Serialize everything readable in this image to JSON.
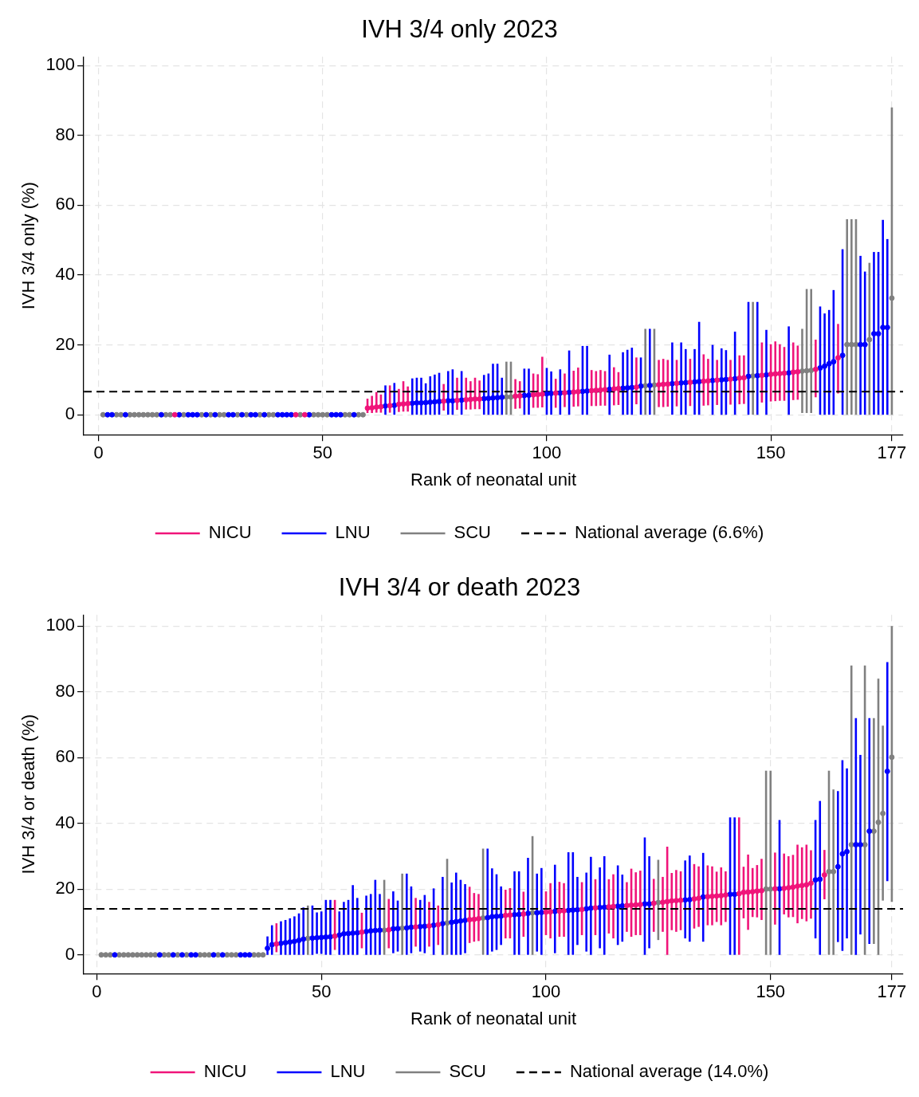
{
  "chart_data": [
    {
      "type": "scatter",
      "title": "IVH 3/4 only 2023",
      "xlabel": "Rank of neonatal unit",
      "ylabel": "IVH 3/4 only (%)",
      "xlim": [
        -3.3,
        179.5
      ],
      "xticks": [
        0,
        50,
        100,
        150,
        177
      ],
      "ylim": [
        -5.7,
        102.5
      ],
      "yticks": [
        0,
        20,
        40,
        60,
        80,
        100
      ],
      "grid": true,
      "legend": "bottom",
      "marker": "circle",
      "series": [
        {
          "name": "NICU",
          "color": "#f0147a",
          "x": [
            17,
            44,
            46,
            60,
            61,
            62,
            63,
            65,
            67,
            68,
            69,
            77,
            80,
            82,
            83,
            84,
            85,
            93,
            94,
            97,
            98,
            99,
            102,
            104,
            106,
            107,
            110,
            111,
            112,
            113,
            115,
            116,
            120,
            125,
            126,
            127,
            129,
            132,
            135,
            136,
            138,
            141,
            143,
            144,
            148,
            150,
            151,
            152,
            153,
            155,
            156,
            160,
            165
          ],
          "values": [
            0,
            0,
            0,
            1.9,
            2.0,
            2.2,
            2.3,
            2.6,
            3.0,
            3.1,
            3.2,
            3.9,
            4.1,
            4.3,
            4.4,
            4.5,
            4.5,
            5.3,
            5.4,
            5.7,
            5.8,
            5.9,
            6.2,
            6.3,
            6.5,
            6.6,
            6.9,
            7.0,
            7.1,
            7.2,
            7.4,
            7.5,
            7.9,
            8.6,
            8.7,
            8.8,
            9.0,
            9.3,
            9.6,
            9.7,
            9.9,
            10.2,
            10.5,
            10.6,
            11.3,
            11.6,
            11.7,
            11.8,
            11.9,
            12.2,
            12.3,
            13.0,
            16.3
          ],
          "errors": [
            null,
            null,
            null,
            [
              0.5,
              4.6
            ],
            [
              0.5,
              5.4
            ],
            [
              0.6,
              6.5
            ],
            [
              0.6,
              5.8
            ],
            [
              0.6,
              8.4
            ],
            [
              0.8,
              7.4
            ],
            [
              0.9,
              9.6
            ],
            [
              0.9,
              8.1
            ],
            [
              1.2,
              8.8
            ],
            [
              1.4,
              10.6
            ],
            [
              1.5,
              10.6
            ],
            [
              1.5,
              9.6
            ],
            [
              1.6,
              10.6
            ],
            [
              1.6,
              9.8
            ],
            [
              1.7,
              10.2
            ],
            [
              1.8,
              9.6
            ],
            [
              2,
              11.8
            ],
            [
              2,
              11.6
            ],
            [
              2.1,
              16.6
            ],
            [
              2,
              10.3
            ],
            [
              2.2,
              11.8
            ],
            [
              2.3,
              12.6
            ],
            [
              2.4,
              13.5
            ],
            [
              2.5,
              12.8
            ],
            [
              2.5,
              12.5
            ],
            [
              2.6,
              12.8
            ],
            [
              2.6,
              12.5
            ],
            [
              2.7,
              13.6
            ],
            [
              2.8,
              12.2
            ],
            [
              3,
              16.4
            ],
            [
              2.2,
              15.7
            ],
            [
              2.2,
              16
            ],
            [
              2.3,
              15.7
            ],
            [
              2.4,
              15.7
            ],
            [
              2.5,
              16
            ],
            [
              2.6,
              17.3
            ],
            [
              2.7,
              16
            ],
            [
              2.8,
              15.7
            ],
            [
              2.9,
              15.7
            ],
            [
              3,
              17
            ],
            [
              3.1,
              17
            ],
            [
              3.5,
              20.7
            ],
            [
              3.8,
              20.2
            ],
            [
              3.9,
              21
            ],
            [
              4,
              20.2
            ],
            [
              4,
              19.4
            ],
            [
              4.2,
              20.7
            ],
            [
              4.3,
              19.8
            ],
            [
              5,
              21.5
            ],
            [
              6.1,
              26
            ]
          ]
        },
        {
          "name": "LNU",
          "color": "#0000ff",
          "x": [
            2,
            3,
            6,
            14,
            18,
            20,
            21,
            22,
            24,
            26,
            29,
            30,
            32,
            34,
            35,
            37,
            40,
            41,
            42,
            43,
            47,
            52,
            53,
            54,
            57,
            64,
            66,
            70,
            71,
            72,
            73,
            74,
            75,
            76,
            78,
            79,
            81,
            86,
            87,
            88,
            89,
            90,
            95,
            96,
            100,
            101,
            103,
            105,
            108,
            109,
            114,
            117,
            118,
            119,
            121,
            123,
            128,
            130,
            131,
            133,
            134,
            137,
            139,
            140,
            142,
            145,
            147,
            149,
            154,
            161,
            162,
            163,
            164,
            166,
            170,
            171,
            173,
            174,
            175,
            176
          ],
          "values": [
            0,
            0,
            0,
            0,
            0,
            0,
            0,
            0,
            0,
            0,
            0,
            0,
            0,
            0,
            0,
            0,
            0,
            0,
            0,
            0,
            0,
            0,
            0,
            0,
            0,
            2.5,
            2.7,
            3.3,
            3.4,
            3.4,
            3.5,
            3.6,
            3.7,
            3.8,
            4.0,
            4.0,
            4.2,
            4.6,
            4.7,
            4.8,
            4.9,
            5.0,
            5.5,
            5.6,
            6.0,
            6.1,
            6.2,
            6.4,
            6.7,
            6.8,
            7.3,
            7.6,
            7.7,
            7.8,
            8.2,
            8.4,
            8.9,
            9.1,
            9.2,
            9.4,
            9.5,
            9.8,
            10.0,
            10.1,
            10.3,
            11.0,
            11.2,
            11.4,
            12.0,
            13.4,
            13.9,
            14.6,
            15.2,
            17,
            20.1,
            20.1,
            23.2,
            23.2,
            25,
            25
          ],
          "errors": [
            null,
            null,
            null,
            null,
            null,
            null,
            null,
            null,
            null,
            null,
            null,
            null,
            null,
            null,
            null,
            null,
            null,
            null,
            null,
            null,
            null,
            null,
            null,
            null,
            null,
            [
              0,
              8.4
            ],
            [
              0,
              9.1
            ],
            [
              0,
              10.4
            ],
            [
              0,
              10.6
            ],
            [
              0,
              10.6
            ],
            [
              0,
              9
            ],
            [
              0,
              11
            ],
            [
              0,
              11.5
            ],
            [
              0,
              12
            ],
            [
              0,
              12.5
            ],
            [
              0,
              13
            ],
            [
              0,
              12.5
            ],
            [
              0,
              11.4
            ],
            [
              0,
              11.8
            ],
            [
              0,
              14.6
            ],
            [
              0,
              14.6
            ],
            [
              0,
              10.6
            ],
            [
              0,
              13.2
            ],
            [
              0,
              13.2
            ],
            [
              0,
              13.4
            ],
            [
              0,
              12.4
            ],
            [
              0,
              13
            ],
            [
              0,
              18.4
            ],
            [
              0,
              19.7
            ],
            [
              0,
              19.7
            ],
            [
              0,
              17.2
            ],
            [
              0,
              17.9
            ],
            [
              0,
              18.6
            ],
            [
              0,
              19.2
            ],
            [
              0,
              16.4
            ],
            [
              0,
              24.6
            ],
            [
              0,
              20.7
            ],
            [
              0,
              20.7
            ],
            [
              0,
              18.8
            ],
            [
              0,
              18.8
            ],
            [
              0,
              26.6
            ],
            [
              0,
              20
            ],
            [
              0,
              19
            ],
            [
              0,
              18.5
            ],
            [
              0,
              23.8
            ],
            [
              0,
              32.3
            ],
            [
              0,
              32.3
            ],
            [
              0,
              24.3
            ],
            [
              0,
              25.3
            ],
            [
              0,
              31
            ],
            [
              0,
              29
            ],
            [
              0,
              30
            ],
            [
              0,
              35.7
            ],
            [
              0,
              47.4
            ],
            [
              0,
              45.5
            ],
            [
              0,
              41
            ],
            [
              0,
              46.6
            ],
            [
              0,
              46.6
            ],
            [
              0,
              55.8
            ],
            [
              0,
              50.3
            ]
          ]
        },
        {
          "name": "SCU",
          "color": "#808080",
          "x": [
            1,
            4,
            5,
            7,
            8,
            9,
            10,
            11,
            12,
            13,
            15,
            16,
            19,
            23,
            25,
            27,
            28,
            31,
            33,
            36,
            38,
            39,
            45,
            48,
            49,
            50,
            51,
            55,
            56,
            58,
            59,
            91,
            92,
            122,
            124,
            146,
            157,
            158,
            159,
            167,
            168,
            169,
            172,
            177
          ],
          "values": [
            0,
            0,
            0,
            0,
            0,
            0,
            0,
            0,
            0,
            0,
            0,
            0,
            0,
            0,
            0,
            0,
            0,
            0,
            0,
            0,
            0,
            0,
            0,
            0,
            0,
            0,
            0,
            0,
            0,
            0,
            0,
            5.1,
            5.1,
            8.3,
            8.5,
            11.1,
            12.5,
            12.6,
            12.7,
            20.1,
            20.1,
            20.1,
            21.5,
            33.4
          ],
          "errors": [
            null,
            null,
            null,
            null,
            null,
            null,
            null,
            null,
            null,
            null,
            null,
            null,
            null,
            null,
            null,
            null,
            null,
            null,
            null,
            null,
            null,
            null,
            null,
            null,
            null,
            null,
            null,
            null,
            null,
            null,
            null,
            [
              0,
              15.2
            ],
            [
              0,
              15.2
            ],
            [
              0,
              24.6
            ],
            [
              0,
              24.6
            ],
            [
              0,
              32.3
            ],
            [
              0.5,
              24.6
            ],
            [
              0.5,
              36
            ],
            [
              0.5,
              36
            ],
            [
              0,
              56
            ],
            [
              0,
              56
            ],
            [
              0,
              56
            ],
            [
              0,
              43.5
            ],
            [
              0,
              88
            ]
          ]
        }
      ],
      "ref_lines": [
        {
          "axis": "y",
          "value": 6.6,
          "label": "National average (6.6%)",
          "color": "#000000",
          "line_style": "dashed"
        }
      ]
    },
    {
      "type": "scatter",
      "title": "IVH 3/4 or death 2023",
      "xlabel": "Rank of neonatal unit",
      "ylabel": "IVH 3/4 or death (%)",
      "xlim": [
        -2.9,
        179.5
      ],
      "xticks": [
        0,
        50,
        100,
        150,
        177
      ],
      "ylim": [
        -5.7,
        103.4
      ],
      "yticks": [
        0,
        20,
        40,
        60,
        80,
        100
      ],
      "grid": true,
      "legend": "bottom",
      "marker": "circle",
      "series": [
        {
          "name": "NICU",
          "color": "#f0147a",
          "x": [
            40,
            53,
            59,
            65,
            71,
            74,
            76,
            83,
            84,
            85,
            91,
            92,
            95,
            100,
            101,
            103,
            104,
            108,
            111,
            114,
            115,
            118,
            119,
            120,
            121,
            124,
            126,
            127,
            128,
            129,
            130,
            133,
            134,
            136,
            137,
            138,
            139,
            140,
            143,
            144,
            145,
            146,
            147,
            148,
            151,
            153,
            154,
            155,
            156,
            157,
            158,
            159,
            162
          ],
          "values": [
            3.3,
            5.7,
            6.9,
            7.6,
            8.5,
            8.8,
            9.2,
            10.7,
            10.8,
            11.0,
            12.0,
            12.1,
            12.4,
            13.0,
            13.1,
            13.3,
            13.4,
            13.8,
            14.3,
            14.6,
            14.7,
            15.0,
            15.1,
            15.2,
            15.3,
            15.7,
            16.0,
            16.2,
            16.4,
            16.5,
            16.6,
            17.0,
            17.2,
            17.7,
            17.8,
            17.9,
            18.0,
            18.2,
            18.6,
            19.0,
            19.1,
            19.2,
            19.4,
            19.5,
            20.1,
            20.2,
            20.4,
            20.6,
            20.9,
            21.1,
            21.3,
            21.8,
            24.3
          ],
          "errors": [
            [
              0.8,
              9.6
            ],
            [
              1.5,
              16.7
            ],
            [
              2,
              12.8
            ],
            [
              2,
              17
            ],
            [
              2.5,
              17.3
            ],
            [
              2.5,
              16.1
            ],
            [
              3,
              15
            ],
            [
              3.6,
              20.7
            ],
            [
              4,
              18.8
            ],
            [
              4.2,
              18.5
            ],
            [
              5,
              19.8
            ],
            [
              5,
              20.3
            ],
            [
              5.5,
              19.2
            ],
            [
              6,
              19.3
            ],
            [
              5,
              21.8
            ],
            [
              5.5,
              22.2
            ],
            [
              5.5,
              21.8
            ],
            [
              6,
              22.1
            ],
            [
              6,
              23
            ],
            [
              6.5,
              23
            ],
            [
              5,
              24.5
            ],
            [
              7,
              22.1
            ],
            [
              5.5,
              26.2
            ],
            [
              6,
              25.1
            ],
            [
              6,
              25.6
            ],
            [
              7,
              23.1
            ],
            [
              7,
              23.7
            ],
            [
              0,
              32.9
            ],
            [
              7.5,
              24.9
            ],
            [
              7,
              25.8
            ],
            [
              7.5,
              25.4
            ],
            [
              8,
              27.6
            ],
            [
              8.5,
              26.9
            ],
            [
              9,
              27.2
            ],
            [
              9,
              26.9
            ],
            [
              10,
              25.3
            ],
            [
              9,
              26.6
            ],
            [
              10,
              25.4
            ],
            [
              0,
              41.8
            ],
            [
              11.1,
              26.8
            ],
            [
              7.6,
              30.5
            ],
            [
              11.5,
              26.4
            ],
            [
              11.4,
              27.3
            ],
            [
              10.6,
              29.2
            ],
            [
              9.2,
              31.1
            ],
            [
              12.3,
              30.8
            ],
            [
              11.4,
              30
            ],
            [
              11.5,
              30.4
            ],
            [
              9.6,
              33.5
            ],
            [
              10.9,
              32.7
            ],
            [
              10.2,
              33.5
            ],
            [
              11,
              31.8
            ],
            [
              16.9,
              31.9
            ]
          ]
        },
        {
          "name": "LNU",
          "color": "#0000ff",
          "x": [
            4,
            14,
            17,
            19,
            21,
            22,
            26,
            28,
            32,
            33,
            34,
            38,
            39,
            41,
            42,
            43,
            44,
            45,
            46,
            48,
            49,
            50,
            51,
            52,
            54,
            55,
            56,
            57,
            58,
            60,
            61,
            62,
            63,
            66,
            67,
            69,
            70,
            72,
            73,
            75,
            77,
            79,
            80,
            81,
            82,
            87,
            88,
            89,
            90,
            93,
            94,
            96,
            98,
            99,
            102,
            105,
            106,
            107,
            109,
            110,
            112,
            113,
            116,
            117,
            122,
            123,
            131,
            132,
            135,
            141,
            142,
            152,
            160,
            161,
            165,
            166,
            167,
            169,
            170,
            172,
            176
          ],
          "values": [
            0,
            0,
            0,
            0,
            0,
            0,
            0,
            0,
            0,
            0,
            0,
            2,
            3.1,
            3.5,
            3.7,
            3.9,
            4.1,
            4.4,
            4.8,
            5.1,
            5.2,
            5.3,
            5.4,
            5.5,
            6.0,
            6.4,
            6.5,
            6.6,
            6.7,
            7.1,
            7.3,
            7.4,
            7.5,
            7.9,
            8.0,
            8.2,
            8.4,
            8.6,
            8.7,
            9.0,
            9.5,
            9.9,
            10.1,
            10.3,
            10.5,
            11.3,
            11.6,
            11.7,
            11.8,
            12.2,
            12.3,
            12.6,
            12.8,
            12.9,
            13.2,
            13.5,
            13.6,
            13.7,
            14.0,
            14.2,
            14.4,
            14.5,
            14.8,
            14.9,
            15.5,
            15.5,
            16.7,
            16.8,
            17.6,
            18.4,
            18.4,
            20.1,
            22.8,
            23,
            26.8,
            30.7,
            31.4,
            33.5,
            33.5,
            37.6,
            55.8
          ],
          "errors": [
            null,
            null,
            null,
            null,
            null,
            null,
            null,
            null,
            null,
            null,
            null,
            [
              0,
              5.6
            ],
            [
              0,
              9
            ],
            [
              0,
              10.2
            ],
            [
              0,
              10.6
            ],
            [
              0,
              11.1
            ],
            [
              0,
              11.7
            ],
            [
              0,
              12.6
            ],
            [
              0,
              14.4
            ],
            [
              0,
              15
            ],
            [
              0.3,
              12.9
            ],
            [
              0.3,
              13.2
            ],
            [
              0,
              16.7
            ],
            [
              0,
              16.7
            ],
            [
              0,
              13.2
            ],
            [
              0,
              16.1
            ],
            [
              0,
              16.7
            ],
            [
              0,
              21.2
            ],
            [
              0,
              17.3
            ],
            [
              0,
              18
            ],
            [
              0,
              18.5
            ],
            [
              0,
              22.8
            ],
            [
              0,
              18.5
            ],
            [
              0.5,
              19.3
            ],
            [
              1,
              16.5
            ],
            [
              0,
              24.7
            ],
            [
              0.5,
              20.8
            ],
            [
              1,
              16.7
            ],
            [
              0.5,
              18.2
            ],
            [
              0,
              20.2
            ],
            [
              0,
              23.7
            ],
            [
              0,
              22
            ],
            [
              0,
              25
            ],
            [
              0,
              22.8
            ],
            [
              0.5,
              21.5
            ],
            [
              0,
              32.3
            ],
            [
              1,
              26.3
            ],
            [
              1.5,
              24.5
            ],
            [
              3,
              20.8
            ],
            [
              0,
              25.4
            ],
            [
              0,
              25.4
            ],
            [
              0,
              29.5
            ],
            [
              1,
              24.7
            ],
            [
              0,
              26.4
            ],
            [
              0.5,
              27.4
            ],
            [
              0,
              31.2
            ],
            [
              0,
              31.2
            ],
            [
              3,
              23.7
            ],
            [
              1,
              25
            ],
            [
              0,
              29.8
            ],
            [
              2,
              26.6
            ],
            [
              0,
              30
            ],
            [
              3,
              27.2
            ],
            [
              4,
              24.4
            ],
            [
              0,
              35.7
            ],
            [
              2,
              30
            ],
            [
              5,
              28.7
            ],
            [
              4,
              30.2
            ],
            [
              4,
              31
            ],
            [
              0,
              41.8
            ],
            [
              0,
              41.8
            ],
            [
              0,
              41
            ],
            [
              5,
              41
            ],
            [
              0,
              46.8
            ],
            [
              3.9,
              49.8
            ],
            [
              1.2,
              59.2
            ],
            [
              5,
              56.7
            ],
            [
              0,
              72
            ],
            [
              6.2,
              60.8
            ],
            [
              3.3,
              72
            ],
            [
              22.4,
              89
            ]
          ]
        },
        {
          "name": "SCU",
          "color": "#808080",
          "x": [
            1,
            2,
            3,
            5,
            6,
            7,
            8,
            9,
            10,
            11,
            12,
            13,
            15,
            16,
            18,
            20,
            23,
            24,
            25,
            27,
            29,
            30,
            31,
            35,
            36,
            37,
            47,
            64,
            68,
            78,
            86,
            97,
            125,
            149,
            150,
            163,
            164,
            168,
            171,
            173,
            174,
            175,
            177
          ],
          "values": [
            0,
            0,
            0,
            0,
            0,
            0,
            0,
            0,
            0,
            0,
            0,
            0,
            0,
            0,
            0,
            0,
            0,
            0,
            0,
            0,
            0,
            0,
            0,
            0,
            0,
            0,
            5.0,
            7.5,
            8.1,
            9.7,
            11.2,
            12.8,
            15.9,
            20,
            20,
            25.3,
            25.3,
            33.5,
            33.5,
            37.6,
            40.3,
            43,
            60.1
          ],
          "errors": [
            null,
            null,
            null,
            null,
            null,
            null,
            null,
            null,
            null,
            null,
            null,
            null,
            null,
            null,
            null,
            null,
            null,
            null,
            null,
            null,
            null,
            null,
            null,
            null,
            null,
            null,
            [
              0,
              15
            ],
            [
              0,
              22.8
            ],
            [
              0,
              24.7
            ],
            [
              0,
              29.2
            ],
            [
              0,
              32.3
            ],
            [
              0,
              36.1
            ],
            [
              4.5,
              28.9
            ],
            [
              0,
              56
            ],
            [
              0,
              56
            ],
            [
              0,
              56
            ],
            [
              0,
              50.3
            ],
            [
              0,
              88
            ],
            [
              0,
              88
            ],
            [
              3.3,
              72
            ],
            [
              0,
              84
            ],
            [
              16.5,
              69.7
            ],
            [
              16.1,
              100
            ]
          ]
        }
      ],
      "ref_lines": [
        {
          "axis": "y",
          "value": 14.0,
          "label": "National average (14.0%)",
          "color": "#000000",
          "line_style": "dashed"
        }
      ]
    }
  ]
}
